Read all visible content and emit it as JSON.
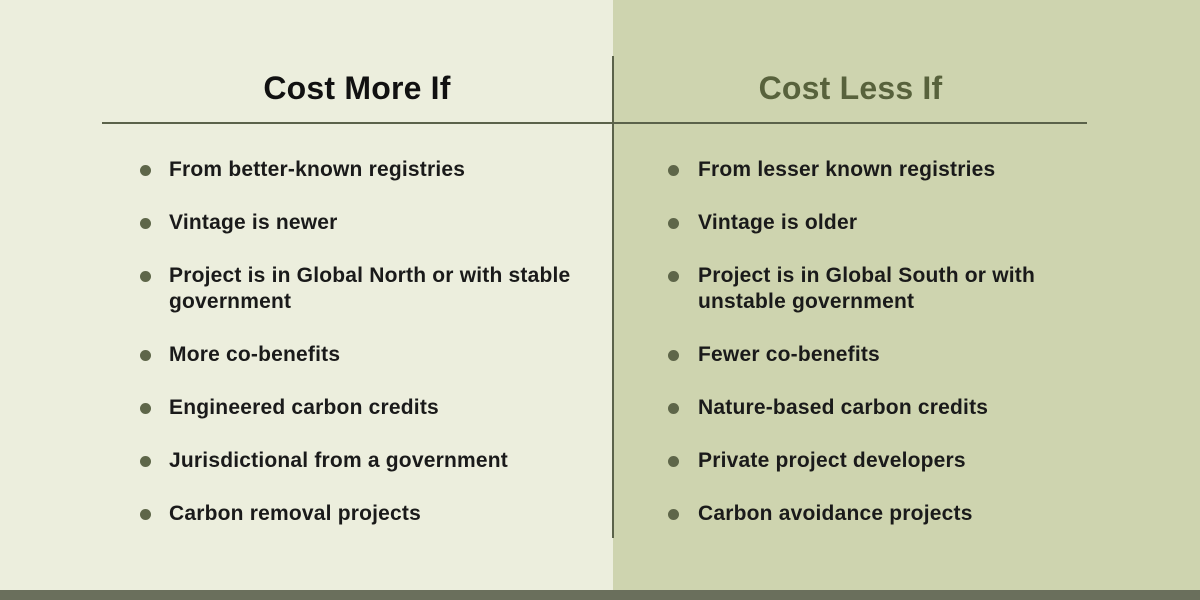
{
  "left": {
    "heading": "Cost More If",
    "items": [
      "From better-known registries",
      "Vintage is newer",
      "Project is in Global North or with stable government",
      "More co-benefits",
      "Engineered carbon credits",
      "Jurisdictional from a government",
      "Carbon removal projects"
    ]
  },
  "right": {
    "heading": "Cost Less If",
    "items": [
      "From lesser known registries",
      "Vintage is older",
      "Project is in Global South or with unstable government",
      "Fewer co-benefits",
      "Nature-based carbon credits",
      "Private project developers",
      "Carbon avoidance projects"
    ]
  },
  "colors": {
    "left_bg": "#eceedd",
    "right_bg": "#ced4af",
    "accent": "#58623c",
    "bullet": "#5e6649",
    "bottom_bar": "#6a6f5c"
  }
}
